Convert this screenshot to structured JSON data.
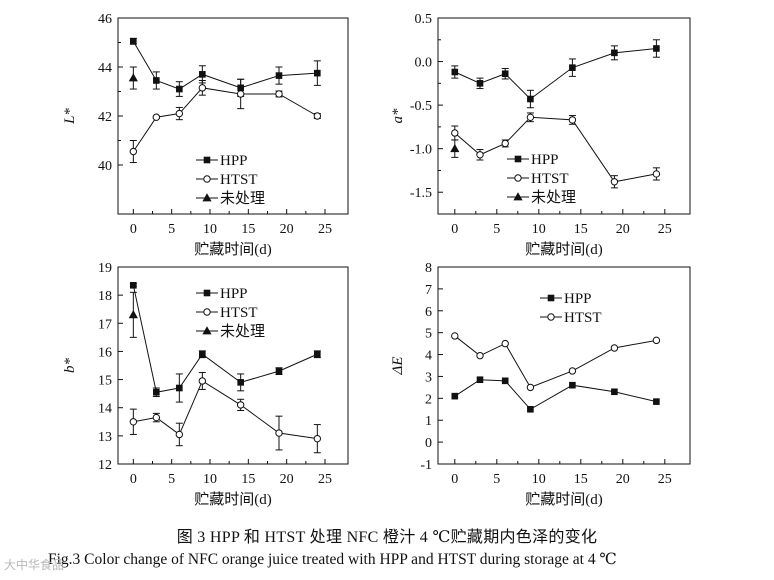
{
  "chart_data": [
    {
      "id": "L",
      "type": "line",
      "ylabel": "L*",
      "xlabel": "贮藏时间(d)",
      "xlim": [
        -2,
        28
      ],
      "ylim": [
        38,
        46
      ],
      "xticks": [
        0,
        5,
        10,
        15,
        20,
        25
      ],
      "yticks": [
        40,
        42,
        44,
        46
      ],
      "legend_position": "bottom-center",
      "series": [
        {
          "name": "HPP",
          "marker": "square-filled",
          "connected": true,
          "x": [
            0,
            3,
            6,
            9,
            14,
            19,
            24
          ],
          "values": [
            45.05,
            43.45,
            43.1,
            43.7,
            43.15,
            43.65,
            43.75
          ],
          "errors": [
            0.12,
            0.35,
            0.3,
            0.35,
            0.35,
            0.35,
            0.5
          ]
        },
        {
          "name": "HTST",
          "marker": "circle-open",
          "connected": true,
          "x": [
            0,
            3,
            6,
            9,
            14,
            19,
            24
          ],
          "values": [
            40.55,
            41.95,
            42.1,
            43.15,
            42.9,
            42.9,
            42.0
          ],
          "errors": [
            0.45,
            0.05,
            0.25,
            0.3,
            0.6,
            0.12,
            0.1
          ]
        },
        {
          "name": "未处理",
          "marker": "triangle-filled",
          "connected": false,
          "x": [
            0
          ],
          "values": [
            43.55
          ],
          "errors": [
            0.45
          ]
        }
      ]
    },
    {
      "id": "a",
      "type": "line",
      "ylabel": "a*",
      "xlabel": "贮藏时间(d)",
      "xlim": [
        -2,
        28
      ],
      "ylim": [
        -1.75,
        0.5
      ],
      "xticks": [
        0,
        5,
        10,
        15,
        20,
        25
      ],
      "yticks": [
        -1.5,
        -1.0,
        -0.5,
        0.0,
        0.5
      ],
      "ytick_labels": [
        "-1.5",
        "-1.0",
        "-0.5",
        "0.0",
        "0.5"
      ],
      "legend_position": "bottom-center",
      "series": [
        {
          "name": "HPP",
          "marker": "square-filled",
          "connected": true,
          "x": [
            0,
            3,
            6,
            9,
            14,
            19,
            24
          ],
          "values": [
            -0.12,
            -0.25,
            -0.14,
            -0.43,
            -0.07,
            0.1,
            0.15
          ],
          "errors": [
            0.07,
            0.06,
            0.06,
            0.1,
            0.1,
            0.08,
            0.1
          ]
        },
        {
          "name": "HTST",
          "marker": "circle-open",
          "connected": true,
          "x": [
            0,
            3,
            6,
            9,
            14,
            19,
            24
          ],
          "values": [
            -0.82,
            -1.07,
            -0.94,
            -0.64,
            -0.67,
            -1.38,
            -1.29
          ],
          "errors": [
            0.08,
            0.06,
            0.04,
            0.05,
            0.05,
            0.07,
            0.07
          ]
        },
        {
          "name": "未处理",
          "marker": "triangle-filled",
          "connected": false,
          "x": [
            0
          ],
          "values": [
            -1.0
          ],
          "errors": [
            0.1
          ]
        }
      ]
    },
    {
      "id": "b",
      "type": "line",
      "ylabel": "b*",
      "xlabel": "贮藏时间(d)",
      "xlim": [
        -2,
        28
      ],
      "ylim": [
        12,
        19
      ],
      "xticks": [
        0,
        5,
        10,
        15,
        20,
        25
      ],
      "yticks": [
        12,
        13,
        14,
        15,
        16,
        17,
        18,
        19
      ],
      "legend_position": "top-center",
      "series": [
        {
          "name": "HPP",
          "marker": "square-filled",
          "connected": true,
          "x": [
            0,
            3,
            6,
            9,
            14,
            19,
            24
          ],
          "values": [
            18.35,
            14.55,
            14.7,
            15.9,
            14.9,
            15.3,
            15.9
          ],
          "errors": [
            0.05,
            0.15,
            0.5,
            0.12,
            0.3,
            0.12,
            0.12
          ]
        },
        {
          "name": "HTST",
          "marker": "circle-open",
          "connected": true,
          "x": [
            0,
            3,
            6,
            9,
            14,
            19,
            24
          ],
          "values": [
            13.5,
            13.65,
            13.05,
            14.95,
            14.1,
            13.1,
            12.9
          ],
          "errors": [
            0.45,
            0.15,
            0.4,
            0.3,
            0.2,
            0.6,
            0.5
          ]
        },
        {
          "name": "未处理",
          "marker": "triangle-filled",
          "connected": false,
          "x": [
            0
          ],
          "values": [
            17.3
          ],
          "errors": [
            0.8
          ]
        }
      ]
    },
    {
      "id": "dE",
      "type": "line",
      "ylabel": "ΔE",
      "xlabel": "贮藏时间(d)",
      "xlim": [
        -2,
        28
      ],
      "ylim": [
        -1,
        8
      ],
      "xticks": [
        0,
        5,
        10,
        15,
        20,
        25
      ],
      "yticks": [
        -1,
        0,
        1,
        2,
        3,
        4,
        5,
        6,
        7,
        8
      ],
      "legend_position": "top-center",
      "series": [
        {
          "name": "HPP",
          "marker": "square-filled",
          "connected": true,
          "x": [
            0,
            3,
            6,
            9,
            14,
            19,
            24
          ],
          "values": [
            2.1,
            2.85,
            2.8,
            1.5,
            2.6,
            2.3,
            1.85
          ],
          "errors": [
            0,
            0,
            0,
            0,
            0,
            0,
            0
          ]
        },
        {
          "name": "HTST",
          "marker": "circle-open",
          "connected": true,
          "x": [
            0,
            3,
            6,
            9,
            14,
            19,
            24
          ],
          "values": [
            4.85,
            3.95,
            4.5,
            2.5,
            3.25,
            4.3,
            4.65
          ],
          "errors": [
            0,
            0,
            0,
            0,
            0,
            0,
            0
          ]
        }
      ]
    }
  ],
  "caption_zh": "图 3   HPP 和 HTST 处理 NFC 橙汁 4 ℃贮藏期内色泽的变化",
  "caption_en": "Fig.3   Color change of NFC orange juice treated with HPP and HTST during storage at 4 ℃",
  "watermark": "大中华食品"
}
